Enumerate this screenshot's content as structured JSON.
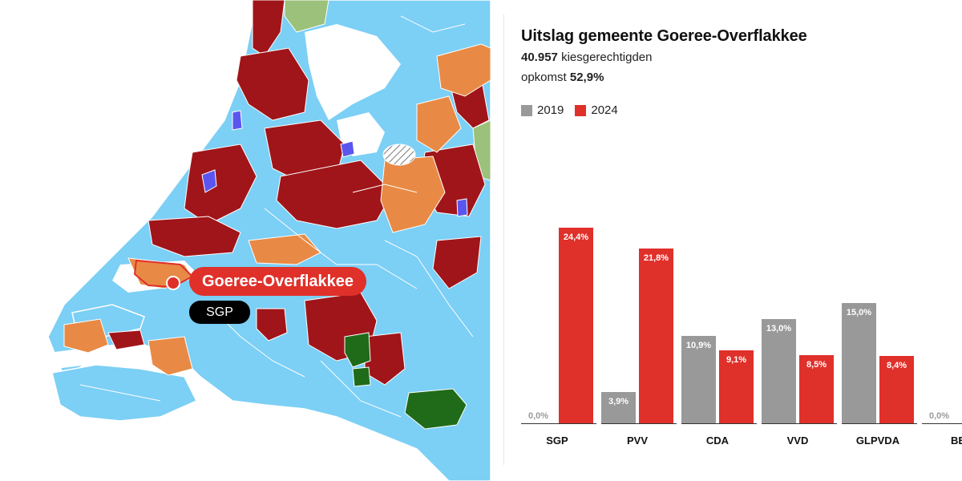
{
  "map": {
    "highlight_label": "Goeree-Overflakkee",
    "winner_label": "SGP",
    "colors": {
      "water": "#ffffff",
      "light_blue": "#7ccff5",
      "dark_red": "#a0151a",
      "orange": "#e88a45",
      "green_light": "#9bc17a",
      "green_dark": "#1f6b1a",
      "purple": "#5b55f0",
      "highlight": "#e0302a"
    }
  },
  "results": {
    "title": "Uitslag gemeente Goeree-Overflakkee",
    "voters_value": "40.957",
    "voters_label": "kiesgerechtigden",
    "turnout_label": "opkomst",
    "turnout_value": "52,9%",
    "legend": [
      {
        "label": "2019",
        "color": "#999999"
      },
      {
        "label": "2024",
        "color": "#e0302a"
      }
    ]
  },
  "chart_data": {
    "type": "bar",
    "categories": [
      "SGP",
      "PVV",
      "CDA",
      "VVD",
      "GLPVDA",
      "BE"
    ],
    "series": [
      {
        "name": "2019",
        "values": [
          0.0,
          3.9,
          10.9,
          13.0,
          15.0,
          0.0
        ],
        "labels": [
          "0,0%",
          "3,9%",
          "10,9%",
          "13,0%",
          "15,0%",
          "0,0%"
        ],
        "color": "#999999"
      },
      {
        "name": "2024",
        "values": [
          24.4,
          21.8,
          9.1,
          8.5,
          8.4,
          null
        ],
        "labels": [
          "24,4%",
          "21,8%",
          "9,1%",
          "8,5%",
          "8,4%",
          ""
        ],
        "color": "#e0302a"
      }
    ],
    "ylim": [
      0,
      25
    ],
    "grid": false,
    "legend_position": "top-left"
  }
}
